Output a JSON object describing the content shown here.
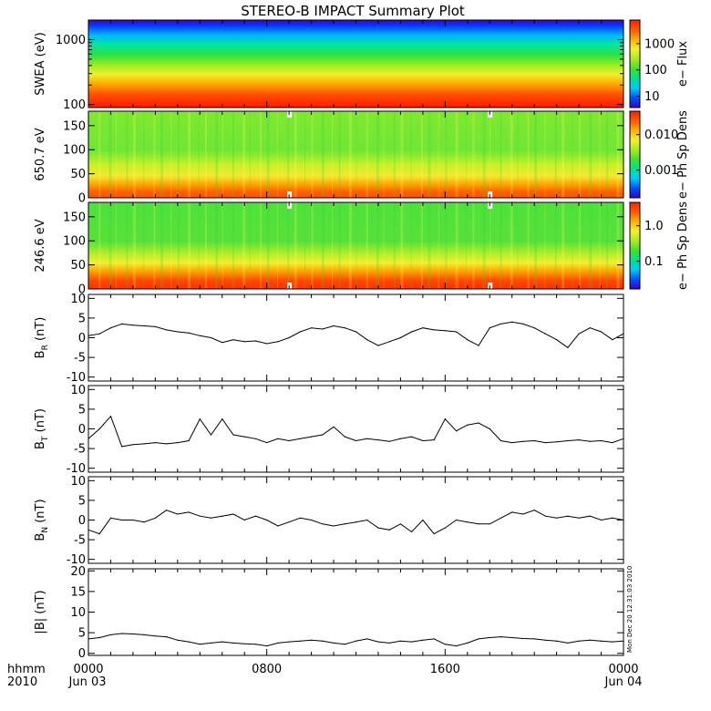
{
  "title": "STEREO-B IMPACT Summary Plot",
  "footer": {
    "hhmm": "hhmm",
    "year": "2010",
    "date_start": "Jun 03",
    "date_end": "Jun 04"
  },
  "timestamp": "Mon Dec 20 12:31:03 2010",
  "x_ticks": [
    "0000",
    "0800",
    "1600",
    "0000"
  ],
  "colors": {
    "spectrum": [
      "#3a00c8",
      "#0050ff",
      "#00c8ff",
      "#00e090",
      "#40e030",
      "#a8ec20",
      "#f2f030",
      "#ffb000",
      "#ff5a00",
      "#ff2000"
    ]
  },
  "chart_data": [
    {
      "type": "heatmap",
      "ylabel": "SWEA (eV)",
      "yscale": "log",
      "ylim": [
        90,
        2000
      ],
      "yticks": [
        "1000",
        "100"
      ],
      "colorbar": {
        "label": "e− Flux",
        "ticks": [
          "1000",
          "100",
          "10"
        ]
      }
    },
    {
      "type": "heatmap",
      "ylabel": "650.7 eV",
      "ylim": [
        0,
        180
      ],
      "yticks": [
        "150",
        "100",
        "50",
        "0"
      ],
      "colorbar": {
        "label": "e− Ph Sp Dens",
        "ticks": [
          "0.010",
          "0.001"
        ]
      },
      "gaps_hours": [
        9.0,
        18.0
      ]
    },
    {
      "type": "heatmap",
      "ylabel": "246.6 eV",
      "ylim": [
        0,
        180
      ],
      "yticks": [
        "150",
        "100",
        "50",
        "0"
      ],
      "colorbar": {
        "label": "e− Ph Sp Dens",
        "ticks": [
          "1.0",
          "0.1"
        ]
      },
      "gaps_hours": [
        9.0,
        18.0
      ]
    },
    {
      "type": "line",
      "ylabel_main": "B",
      "ylabel_sub": "R",
      "ylabel_unit": "(nT)",
      "ylim": [
        -11,
        11
      ],
      "yticks": [
        "10",
        "5",
        "0",
        "-5",
        "-10"
      ],
      "x": [
        0,
        0.5,
        1,
        1.5,
        2,
        2.5,
        3,
        3.5,
        4,
        4.5,
        5,
        5.5,
        6,
        6.5,
        7,
        7.5,
        8,
        8.5,
        9,
        9.5,
        10,
        10.5,
        11,
        11.5,
        12,
        12.5,
        13,
        13.5,
        14,
        14.5,
        15,
        15.5,
        16,
        16.5,
        17,
        17.5,
        18,
        18.5,
        19,
        19.5,
        20,
        20.5,
        21,
        21.5,
        22,
        22.5,
        23,
        23.5,
        24
      ],
      "y": [
        0.5,
        1,
        2.5,
        3.5,
        3.2,
        3,
        2.8,
        2,
        1.5,
        1.2,
        0.5,
        0,
        -1.2,
        -0.5,
        -1,
        -0.8,
        -1.5,
        -1,
        0,
        1.5,
        2.5,
        2.2,
        3,
        2.5,
        1.5,
        -0.5,
        -2,
        -1,
        0,
        1.5,
        2.5,
        2,
        1.8,
        1.5,
        -0.5,
        -2,
        2.5,
        3.5,
        4,
        3.5,
        2.5,
        1,
        -0.5,
        -2.5,
        1,
        2.5,
        1.5,
        -0.5,
        1
      ]
    },
    {
      "type": "line",
      "ylabel_main": "B",
      "ylabel_sub": "T",
      "ylabel_unit": "(nT)",
      "ylim": [
        -11,
        11
      ],
      "yticks": [
        "10",
        "5",
        "0",
        "-5",
        "-10"
      ],
      "x": [
        0,
        0.5,
        1,
        1.5,
        2,
        2.5,
        3,
        3.5,
        4,
        4.5,
        5,
        5.5,
        6,
        6.5,
        7,
        7.5,
        8,
        8.5,
        9,
        9.5,
        10,
        10.5,
        11,
        11.5,
        12,
        12.5,
        13,
        13.5,
        14,
        14.5,
        15,
        15.5,
        16,
        16.5,
        17,
        17.5,
        18,
        18.5,
        19,
        19.5,
        20,
        20.5,
        21,
        21.5,
        22,
        22.5,
        23,
        23.5,
        24
      ],
      "y": [
        -2.5,
        0,
        3.2,
        -4.5,
        -4,
        -3.8,
        -3.5,
        -3.8,
        -3.5,
        -3,
        2.5,
        -1.5,
        2.5,
        -1.5,
        -2,
        -2.5,
        -3.5,
        -2.5,
        -3,
        -2.5,
        -2,
        -1.5,
        0.5,
        -2,
        -3,
        -2.5,
        -2.8,
        -3.2,
        -2.5,
        -2,
        -3,
        -2.8,
        2.5,
        -0.5,
        1,
        1.5,
        0,
        -3,
        -3.5,
        -3.2,
        -3,
        -3.5,
        -3.3,
        -3,
        -2.8,
        -3.2,
        -3,
        -3.5,
        -2.5
      ]
    },
    {
      "type": "line",
      "ylabel_main": "B",
      "ylabel_sub": "N",
      "ylabel_unit": "(nT)",
      "ylim": [
        -11,
        11
      ],
      "yticks": [
        "10",
        "5",
        "0",
        "-5",
        "-10"
      ],
      "x": [
        0,
        0.5,
        1,
        1.5,
        2,
        2.5,
        3,
        3.5,
        4,
        4.5,
        5,
        5.5,
        6,
        6.5,
        7,
        7.5,
        8,
        8.5,
        9,
        9.5,
        10,
        10.5,
        11,
        11.5,
        12,
        12.5,
        13,
        13.5,
        14,
        14.5,
        15,
        15.5,
        16,
        16.5,
        17,
        17.5,
        18,
        18.5,
        19,
        19.5,
        20,
        20.5,
        21,
        21.5,
        22,
        22.5,
        23,
        23.5,
        24
      ],
      "y": [
        -2.5,
        -3.5,
        0.5,
        0,
        0,
        -0.5,
        0.5,
        2.5,
        1.5,
        2,
        1,
        0.5,
        1,
        1.5,
        0,
        1,
        0,
        -1.5,
        -0.5,
        0.5,
        0,
        -1,
        -1.5,
        -1,
        -0.5,
        0,
        -2,
        -2.5,
        -1,
        -3,
        0,
        -3.5,
        -2,
        0,
        -0.5,
        -1,
        -1,
        0.5,
        2,
        1.5,
        2.5,
        1,
        0.5,
        1,
        0.5,
        1,
        0,
        0.5,
        0
      ]
    },
    {
      "type": "line",
      "ylabel": "|B| (nT)",
      "ylim": [
        -0.5,
        20.5
      ],
      "yticks": [
        "20",
        "15",
        "10",
        "5",
        "0"
      ],
      "x": [
        0,
        0.5,
        1,
        1.5,
        2,
        2.5,
        3,
        3.5,
        4,
        4.5,
        5,
        5.5,
        6,
        6.5,
        7,
        7.5,
        8,
        8.5,
        9,
        9.5,
        10,
        10.5,
        11,
        11.5,
        12,
        12.5,
        13,
        13.5,
        14,
        14.5,
        15,
        15.5,
        16,
        16.5,
        17,
        17.5,
        18,
        18.5,
        19,
        19.5,
        20,
        20.5,
        21,
        21.5,
        22,
        22.5,
        23,
        23.5,
        24
      ],
      "y": [
        3.5,
        3.8,
        4.5,
        4.8,
        4.7,
        4.5,
        4.2,
        4,
        3.2,
        2.8,
        2.2,
        2.5,
        2.8,
        2.5,
        2.3,
        2.2,
        1.8,
        2.5,
        2.8,
        3,
        3.2,
        3,
        2.5,
        2.2,
        3,
        3.5,
        2.8,
        2.5,
        3,
        2.8,
        3.2,
        3.5,
        2.2,
        1.8,
        2.5,
        3.5,
        3.8,
        4,
        3.8,
        3.6,
        3.5,
        3.2,
        3,
        2.5,
        3,
        3.2,
        3,
        2.8,
        3
      ]
    }
  ]
}
